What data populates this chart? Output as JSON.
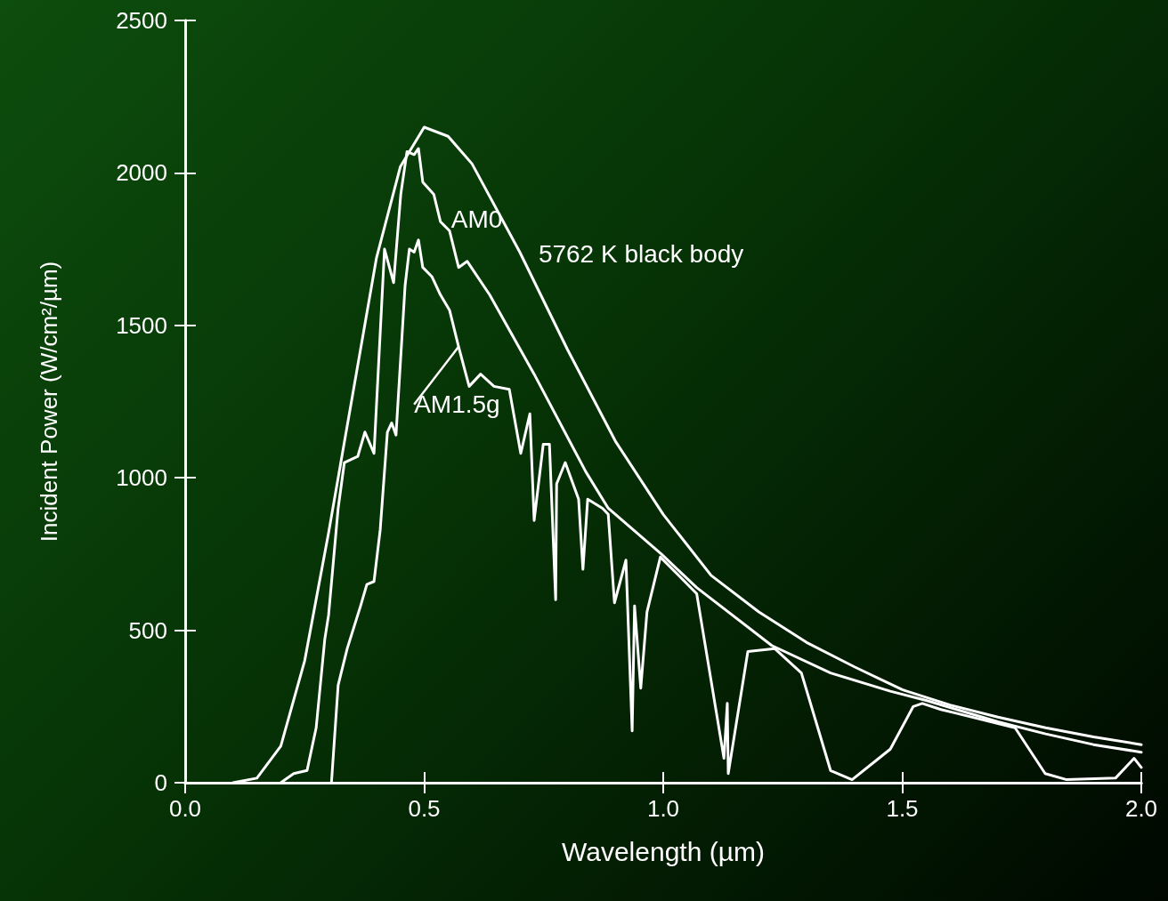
{
  "chart_data": {
    "type": "line",
    "xlabel": "Wavelength (µm)",
    "ylabel": "Incident Power (W/cm²/µm)",
    "xlim": [
      0,
      2
    ],
    "xticks": [
      {
        "value": 0,
        "label": "0.0"
      },
      {
        "value": 0.5,
        "label": "0.5"
      },
      {
        "value": 1,
        "label": "1.0"
      },
      {
        "value": 1.5,
        "label": "1.5"
      },
      {
        "value": 2,
        "label": "2.0"
      }
    ],
    "ylim": [
      0,
      2500
    ],
    "yticks": [
      0,
      500,
      1000,
      1500,
      2000,
      2500
    ],
    "grid": false,
    "legend": false,
    "marker": "none",
    "line_style": "solid",
    "series": [
      {
        "name": "5762 K black body",
        "color": "#ffffff",
        "x": [
          0.1,
          0.15,
          0.2,
          0.25,
          0.3,
          0.35,
          0.4,
          0.45,
          0.5,
          0.55,
          0.6,
          0.7,
          0.8,
          0.9,
          1.0,
          1.1,
          1.2,
          1.3,
          1.4,
          1.5,
          1.6,
          1.7,
          1.8,
          1.9,
          2.0
        ],
        "values": [
          0,
          15,
          120,
          400,
          820,
          1270,
          1720,
          2020,
          2150,
          2120,
          2030,
          1740,
          1420,
          1120,
          880,
          680,
          560,
          460,
          380,
          305,
          255,
          215,
          180,
          150,
          125
        ]
      },
      {
        "name": "AM0",
        "color": "#ffffff",
        "x": [
          0.2,
          0.227,
          0.255,
          0.274,
          0.292,
          0.3,
          0.32,
          0.333,
          0.361,
          0.376,
          0.395,
          0.417,
          0.436,
          0.451,
          0.464,
          0.479,
          0.488,
          0.497,
          0.52,
          0.534,
          0.553,
          0.572,
          0.59,
          0.637,
          0.73,
          0.838,
          0.885,
          0.996,
          1.07,
          1.227,
          1.35,
          1.475,
          1.55,
          1.7,
          1.8,
          1.9,
          2.0
        ],
        "values": [
          0,
          30,
          40,
          180,
          470,
          550,
          900,
          1050,
          1070,
          1150,
          1080,
          1750,
          1640,
          1930,
          2070,
          2060,
          2080,
          1970,
          1930,
          1840,
          1810,
          1690,
          1710,
          1600,
          1340,
          1020,
          900,
          750,
          640,
          450,
          360,
          300,
          270,
          200,
          160,
          125,
          100
        ]
      },
      {
        "name": "AM1.5g",
        "color": "#ffffff",
        "x": [
          0.306,
          0.32,
          0.339,
          0.367,
          0.38,
          0.395,
          0.408,
          0.423,
          0.432,
          0.441,
          0.46,
          0.469,
          0.479,
          0.488,
          0.497,
          0.516,
          0.534,
          0.553,
          0.572,
          0.594,
          0.618,
          0.646,
          0.678,
          0.702,
          0.721,
          0.73,
          0.749,
          0.762,
          0.775,
          0.777,
          0.795,
          0.823,
          0.832,
          0.842,
          0.873,
          0.885,
          0.898,
          0.922,
          0.935,
          0.94,
          0.953,
          0.966,
          0.994,
          1.07,
          1.127,
          1.134,
          1.136,
          1.177,
          1.233,
          1.289,
          1.35,
          1.395,
          1.443,
          1.475,
          1.523,
          1.542,
          1.581,
          1.607,
          1.736,
          1.799,
          1.844,
          1.946,
          1.985,
          2.0
        ],
        "values": [
          0,
          320,
          440,
          580,
          650,
          660,
          830,
          1150,
          1180,
          1140,
          1630,
          1750,
          1740,
          1780,
          1690,
          1660,
          1600,
          1550,
          1430,
          1300,
          1340,
          1300,
          1290,
          1080,
          1210,
          860,
          1110,
          1110,
          600,
          980,
          1050,
          930,
          700,
          930,
          900,
          880,
          590,
          730,
          170,
          580,
          310,
          560,
          740,
          620,
          80,
          260,
          30,
          430,
          440,
          360,
          40,
          10,
          70,
          110,
          250,
          260,
          240,
          230,
          180,
          30,
          10,
          15,
          80,
          50
        ]
      }
    ]
  }
}
